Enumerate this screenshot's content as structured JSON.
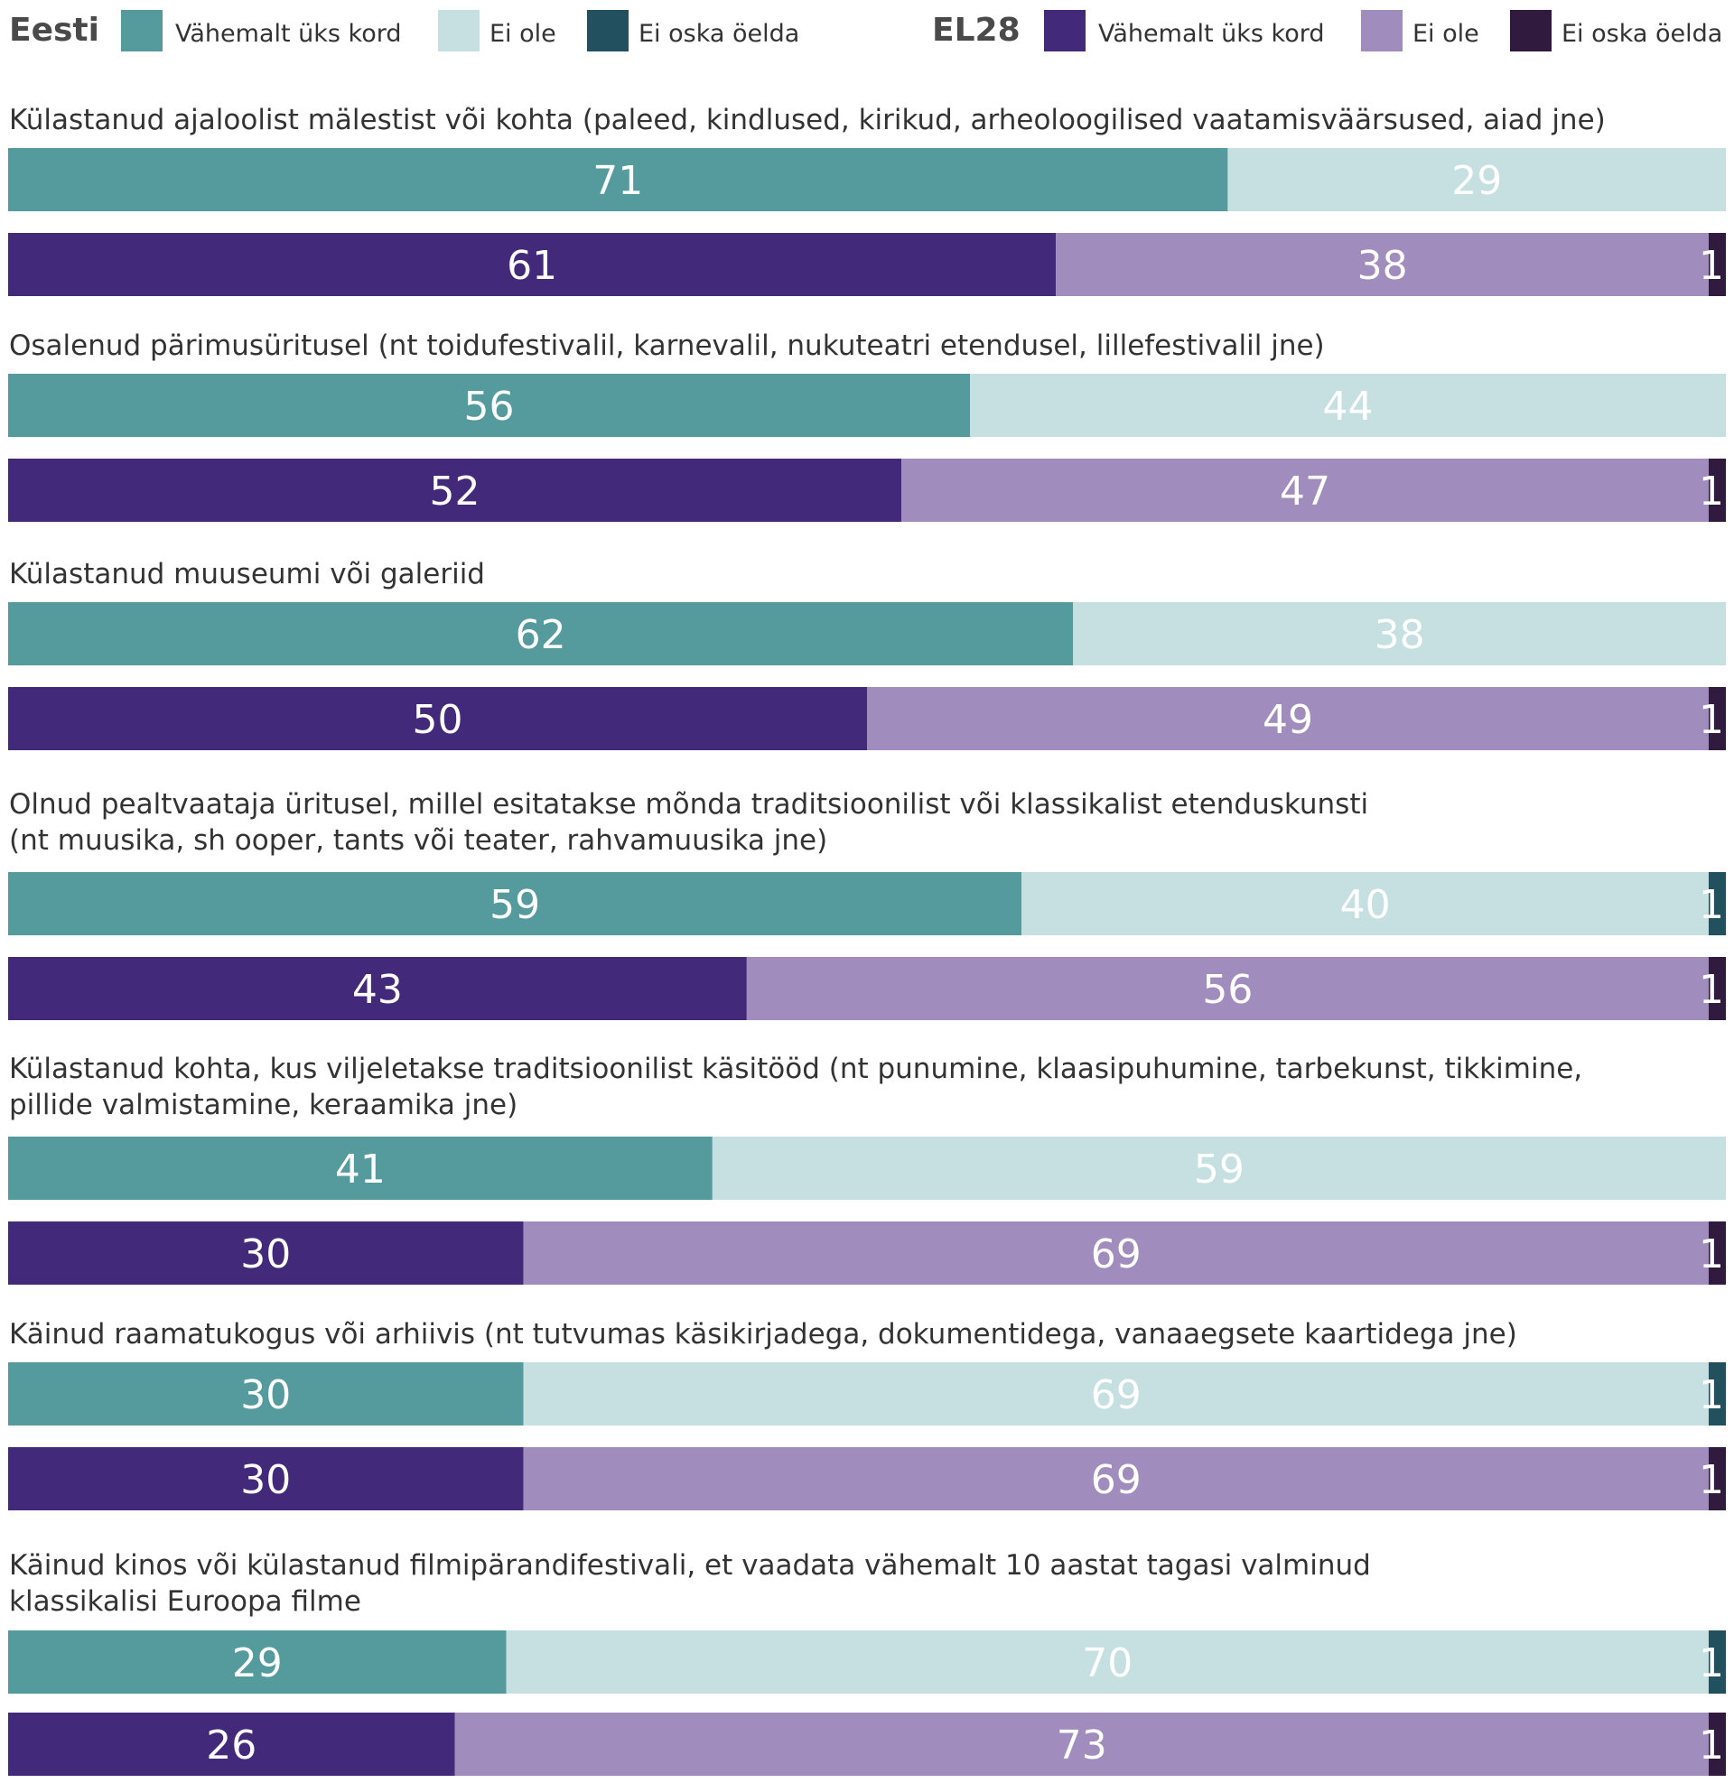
{
  "chart_data": {
    "type": "bar",
    "orientation": "horizontal",
    "stacked": true,
    "unit": "%",
    "grid": false,
    "legend_placement": "top",
    "legend": [
      {
        "group": "Eesti",
        "entries": [
          {
            "label": "Vähemalt üks kord",
            "color": "#559b9e"
          },
          {
            "label": "Ei ole",
            "color": "#c6dfe0"
          },
          {
            "label": "Ei oska öelda",
            "color": "#22505f"
          }
        ]
      },
      {
        "group": "EL28",
        "entries": [
          {
            "label": "Vähemalt üks kord",
            "color": "#43297a"
          },
          {
            "label": "Ei ole",
            "color": "#a18cbe"
          },
          {
            "label": "Ei oska öelda",
            "color": "#301a3e"
          }
        ]
      }
    ],
    "categories": [
      {
        "lines": [
          "Külastanud ajaloolist mälestist või kohta (paleed, kindlused, kirikud, arheoloogilised vaatamisväärsused, aiad jne)"
        ],
        "eesti": [
          71,
          29,
          0
        ],
        "el28": [
          61,
          38,
          1
        ]
      },
      {
        "lines": [
          "Osalenud pärimusüritusel (nt toidufestivalil, karnevalil, nukuteatri etendusel, lillefestivalil jne)"
        ],
        "eesti": [
          56,
          44,
          0
        ],
        "el28": [
          52,
          47,
          1
        ]
      },
      {
        "lines": [
          "Külastanud muuseumi või galeriid"
        ],
        "eesti": [
          62,
          38,
          0
        ],
        "el28": [
          50,
          49,
          1
        ]
      },
      {
        "lines": [
          "Olnud pealtvaataja üritusel, millel esitatakse mõnda traditsioonilist või klassikalist etenduskunsti",
          "(nt muusika, sh ooper, tants või teater, rahvamuusika jne)"
        ],
        "eesti": [
          59,
          40,
          1
        ],
        "el28": [
          43,
          56,
          1
        ]
      },
      {
        "lines": [
          "Külastanud kohta, kus viljeletakse traditsioonilist käsitööd (nt punumine, klaasipuhumine, tarbekunst, tikkimine,",
          "pillide valmistamine, keraamika jne)"
        ],
        "eesti": [
          41,
          59,
          0
        ],
        "el28": [
          30,
          69,
          1
        ]
      },
      {
        "lines": [
          "Käinud raamatukogus või arhiivis (nt tutvumas käsikirjadega, dokumentidega, vanaaegsete kaartidega jne)"
        ],
        "eesti": [
          30,
          69,
          1
        ],
        "el28": [
          30,
          69,
          1
        ]
      },
      {
        "lines": [
          "Käinud kinos või külastanud filmipärandifestivali, et vaadata vähemalt 10 aastat tagasi valminud",
          "klassikalisi Euroopa filme"
        ],
        "eesti": [
          29,
          70,
          1
        ],
        "el28": [
          26,
          73,
          1
        ]
      }
    ]
  }
}
